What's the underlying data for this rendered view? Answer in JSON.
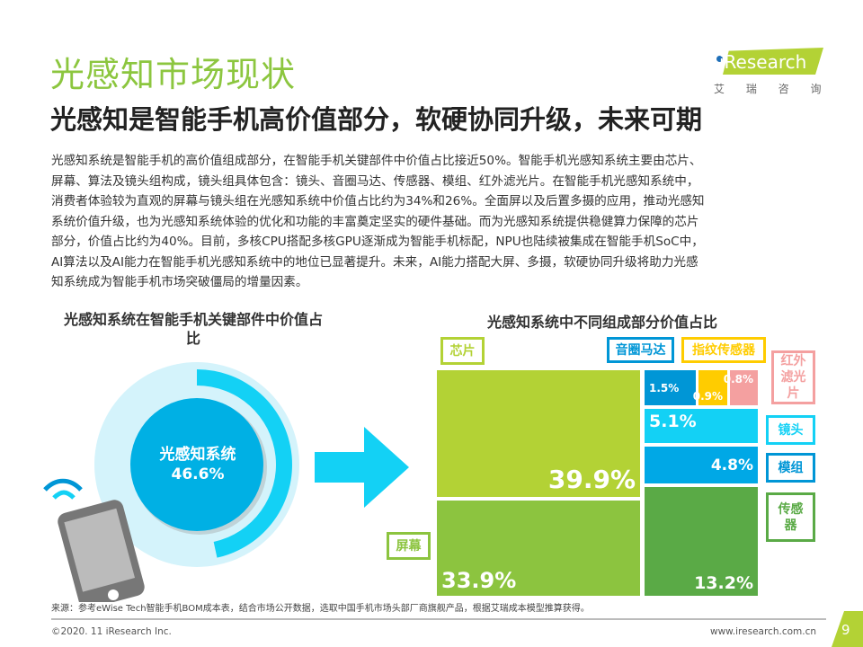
{
  "header": {
    "title": "光感知市场现状",
    "subtitle": "光感知是智能手机高价值部分，软硬协同升级，未来可期",
    "logo_text": "iResearch",
    "logo_cn": "艾 瑞 咨 询"
  },
  "body_lines": [
    "光感知系统是智能手机的高价值组成部分，在智能手机关键部件中价值占比接近50%。智能手机光感知系统主要由芯片、",
    "屏幕、算法及镜头组构成，镜头组具体包含：镜头、音圈马达、传感器、模组、红外滤光片。在智能手机光感知系统中，",
    "消费者体验较为直观的屏幕与镜头组在光感知系统中价值占比约为34%和26%。全面屏以及后置多摄的应用，推动光感知",
    "系统价值升级，也为光感知系统体验的优化和功能的丰富奠定坚实的硬件基础。而为光感知系统提供稳健算力保障的芯片",
    "部分，价值占比约为40%。目前，多核CPU搭配多核GPU逐渐成为智能手机标配，NPU也陆续被集成在智能手机SoC中，",
    "AI算法以及AI能力在智能手机光感知系统中的地位已显著提升。未来，AI能力搭配大屏、多摄，软硬协同升级将助力光感",
    "知系统成为智能手机市场突破僵局的增量因素。"
  ],
  "chart_data": [
    {
      "type": "pie",
      "title": "光感知系统在智能手机关键部件中价值占比",
      "center_label": "光感知系统",
      "value": 46.6,
      "value_label": "46.6%",
      "colors": {
        "ring": "#13d1f5",
        "inner": "#00b0e4",
        "bg": "#d4f3fb"
      }
    },
    {
      "type": "treemap",
      "title": "光感知系统中不同组成部分价值占比",
      "items": [
        {
          "name": "芯片",
          "value": 39.9,
          "label": "39.9%",
          "color": "#b3d235"
        },
        {
          "name": "屏幕",
          "value": 33.9,
          "label": "33.9%",
          "color": "#8cc43f"
        },
        {
          "name": "音圈马达",
          "value": 1.5,
          "label": "1.5%",
          "color": "#0096d6"
        },
        {
          "name": "指纹传感器",
          "value": 0.9,
          "label": "0.9%",
          "color": "#ffcc00"
        },
        {
          "name": "红外滤光片",
          "value": 0.8,
          "label": "0.8%",
          "color": "#f4a0a0"
        },
        {
          "name": "镜头",
          "value": 5.1,
          "label": "5.1%",
          "color": "#13d1f5"
        },
        {
          "name": "模组",
          "value": 4.8,
          "label": "4.8%",
          "color": "#00a8e6"
        },
        {
          "name": "传感器",
          "value": 13.2,
          "label": "13.2%",
          "color": "#5aaa46"
        }
      ]
    }
  ],
  "footer": {
    "source": "来源：参考eWise Tech智能手机BOM成本表，结合市场公开数据，选取中国手机市场头部厂商旗舰产品，根据艾瑞成本模型推算获得。",
    "copyright": "©2020. 11 iResearch Inc.",
    "website": "www.iresearch.com.cn",
    "page": "9"
  }
}
